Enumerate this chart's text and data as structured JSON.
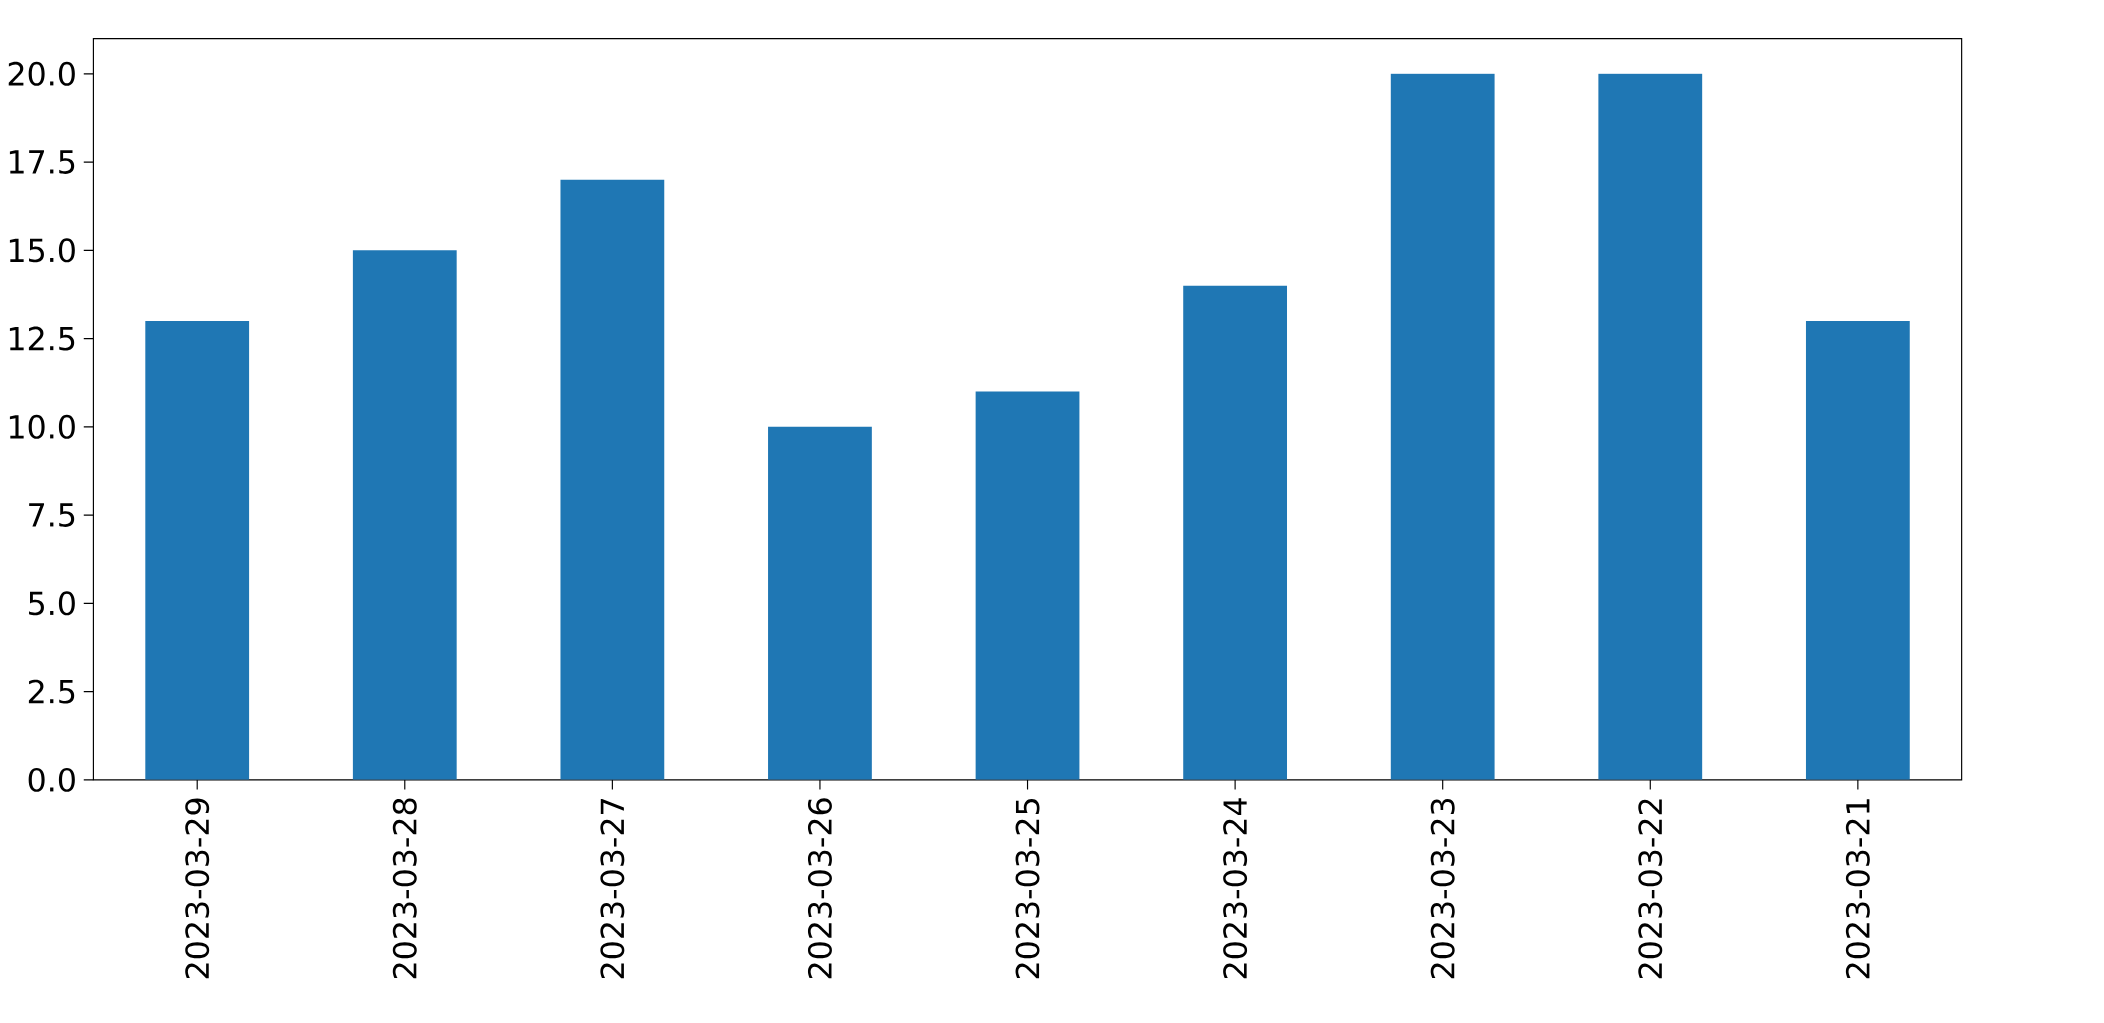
{
  "chart_data": {
    "type": "bar",
    "categories": [
      "2023-03-29",
      "2023-03-28",
      "2023-03-27",
      "2023-03-26",
      "2023-03-25",
      "2023-03-24",
      "2023-03-23",
      "2023-03-22",
      "2023-03-21"
    ],
    "values": [
      13,
      15,
      17,
      10,
      11,
      14,
      20,
      20,
      13
    ],
    "color": "#1f77b4",
    "ylim": [
      0,
      21
    ],
    "yticks": [
      {
        "value": 0,
        "label": "0.0"
      },
      {
        "value": 2.5,
        "label": "2.5"
      },
      {
        "value": 5,
        "label": "5.0"
      },
      {
        "value": 7.5,
        "label": "7.5"
      },
      {
        "value": 10,
        "label": "10.0"
      },
      {
        "value": 12.5,
        "label": "12.5"
      },
      {
        "value": 15,
        "label": "15.0"
      },
      {
        "value": 17.5,
        "label": "17.5"
      },
      {
        "value": 20,
        "label": "20.0"
      }
    ]
  }
}
